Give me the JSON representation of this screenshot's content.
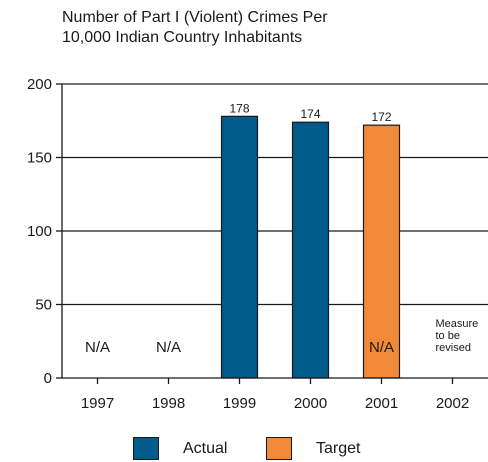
{
  "chart_data": {
    "type": "bar",
    "title": [
      "Number of Part I (Violent) Crimes Per",
      "10,000 Indian Country Inhabitants"
    ],
    "categories": [
      "1997",
      "1998",
      "1999",
      "2000",
      "2001",
      "2002"
    ],
    "series": [
      {
        "name": "Actual",
        "color": "#005b8a",
        "values": [
          null,
          null,
          178,
          174,
          null,
          null
        ],
        "labels": [
          "N/A",
          "N/A",
          "178",
          "174",
          "N/A",
          ""
        ]
      },
      {
        "name": "Target",
        "color": "#f08a38",
        "values": [
          null,
          null,
          null,
          null,
          172,
          null
        ],
        "labels": [
          "",
          "",
          "",
          "",
          "172",
          ""
        ]
      }
    ],
    "annotations": [
      {
        "category": "2002",
        "lines": [
          "Measure",
          "to be",
          "revised"
        ]
      }
    ],
    "yticks": [
      0,
      50,
      100,
      150,
      200
    ],
    "ylim": [
      0,
      200
    ],
    "xlabel": "",
    "ylabel": "",
    "grid": true,
    "legend_position": "bottom"
  }
}
